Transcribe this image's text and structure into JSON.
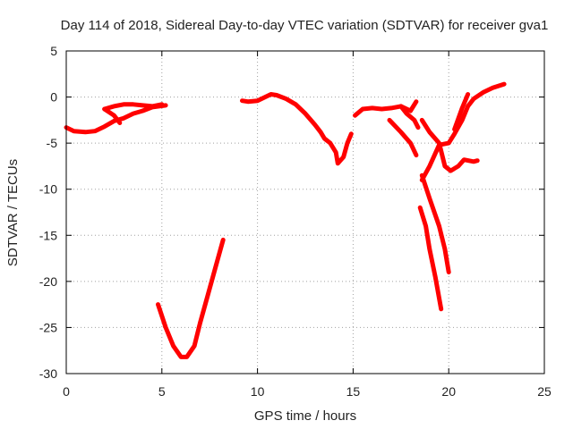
{
  "chart_data": {
    "type": "line",
    "title": "Day 114 of 2018, Sidereal Day-to-day VTEC variation (SDTVAR) for receiver gva1",
    "xlabel": "GPS time / hours",
    "ylabel": "SDTVAR / TECUs",
    "xlim": [
      0,
      25
    ],
    "ylim": [
      -30,
      5
    ],
    "xticks": [
      0,
      5,
      10,
      15,
      20,
      25
    ],
    "yticks": [
      -30,
      -25,
      -20,
      -15,
      -10,
      -5,
      0,
      5
    ],
    "grid": true,
    "color": "#ff0000",
    "series": [
      {
        "points": [
          [
            0,
            -3.3
          ],
          [
            0.4,
            -3.7
          ],
          [
            1.0,
            -3.8
          ],
          [
            1.5,
            -3.7
          ],
          [
            2.0,
            -3.2
          ],
          [
            2.5,
            -2.6
          ],
          [
            3.0,
            -2.3
          ],
          [
            3.5,
            -1.8
          ],
          [
            4.0,
            -1.5
          ],
          [
            4.5,
            -1.1
          ],
          [
            5.2,
            -0.9
          ]
        ]
      },
      {
        "points": [
          [
            2.0,
            -1.3
          ],
          [
            2.5,
            -1.0
          ],
          [
            3.0,
            -0.8
          ],
          [
            3.5,
            -0.8
          ],
          [
            4.0,
            -0.9
          ],
          [
            4.5,
            -1.0
          ],
          [
            5.0,
            -0.8
          ]
        ]
      },
      {
        "points": [
          [
            2.0,
            -1.3
          ],
          [
            2.5,
            -2.0
          ],
          [
            2.8,
            -2.8
          ]
        ]
      },
      {
        "points": [
          [
            4.8,
            -22.5
          ],
          [
            5.2,
            -25.0
          ],
          [
            5.6,
            -27.0
          ],
          [
            6.0,
            -28.2
          ],
          [
            6.3,
            -28.2
          ],
          [
            6.7,
            -27.0
          ],
          [
            7.0,
            -24.5
          ],
          [
            7.4,
            -21.5
          ],
          [
            7.8,
            -18.5
          ],
          [
            8.2,
            -15.5
          ]
        ]
      },
      {
        "points": [
          [
            9.2,
            -0.4
          ],
          [
            9.5,
            -0.5
          ],
          [
            10.0,
            -0.4
          ],
          [
            10.4,
            0.0
          ],
          [
            10.7,
            0.3
          ],
          [
            11.0,
            0.2
          ],
          [
            11.5,
            -0.2
          ],
          [
            12.0,
            -0.8
          ],
          [
            12.5,
            -1.8
          ],
          [
            13.0,
            -3.0
          ],
          [
            13.3,
            -3.8
          ],
          [
            13.5,
            -4.5
          ],
          [
            13.8,
            -5.0
          ],
          [
            14.1,
            -6.0
          ],
          [
            14.2,
            -7.2
          ],
          [
            14.5,
            -6.5
          ],
          [
            14.7,
            -5.0
          ],
          [
            14.9,
            -4.0
          ]
        ]
      },
      {
        "points": [
          [
            15.1,
            -2.0
          ],
          [
            15.5,
            -1.3
          ],
          [
            16.0,
            -1.2
          ],
          [
            16.5,
            -1.3
          ],
          [
            17.0,
            -1.2
          ],
          [
            17.5,
            -1.0
          ],
          [
            18.0,
            -1.5
          ],
          [
            18.3,
            -0.5
          ]
        ]
      },
      {
        "points": [
          [
            17.5,
            -1.0
          ],
          [
            17.8,
            -1.8
          ],
          [
            18.2,
            -2.5
          ],
          [
            18.4,
            -3.3
          ]
        ]
      },
      {
        "points": [
          [
            16.9,
            -2.5
          ],
          [
            17.5,
            -3.8
          ],
          [
            18.0,
            -5.0
          ],
          [
            18.3,
            -6.3
          ]
        ]
      },
      {
        "points": [
          [
            18.6,
            -2.5
          ],
          [
            19.0,
            -3.8
          ],
          [
            19.5,
            -5.0
          ],
          [
            19.8,
            -7.5
          ],
          [
            20.1,
            -8.0
          ],
          [
            20.5,
            -7.5
          ],
          [
            20.8,
            -6.8
          ],
          [
            21.3,
            -7.0
          ],
          [
            21.5,
            -6.9
          ]
        ]
      },
      {
        "points": [
          [
            18.6,
            -9.0
          ],
          [
            19.0,
            -7.5
          ],
          [
            19.5,
            -5.2
          ],
          [
            20.0,
            -5.0
          ],
          [
            20.3,
            -4.0
          ],
          [
            20.7,
            -2.5
          ],
          [
            21.0,
            -1.0
          ],
          [
            21.3,
            -0.2
          ],
          [
            21.8,
            0.5
          ],
          [
            22.3,
            1.0
          ],
          [
            22.9,
            1.4
          ]
        ]
      },
      {
        "points": [
          [
            20.3,
            -3.5
          ],
          [
            20.7,
            -1.2
          ],
          [
            21.0,
            0.3
          ]
        ]
      },
      {
        "points": [
          [
            18.6,
            -8.5
          ],
          [
            19.0,
            -11.0
          ],
          [
            19.5,
            -14.0
          ],
          [
            19.8,
            -16.5
          ],
          [
            20.0,
            -19.0
          ]
        ]
      },
      {
        "points": [
          [
            18.5,
            -12.0
          ],
          [
            18.8,
            -14.0
          ],
          [
            19.0,
            -16.5
          ],
          [
            19.3,
            -19.5
          ],
          [
            19.6,
            -23.0
          ]
        ]
      }
    ]
  }
}
